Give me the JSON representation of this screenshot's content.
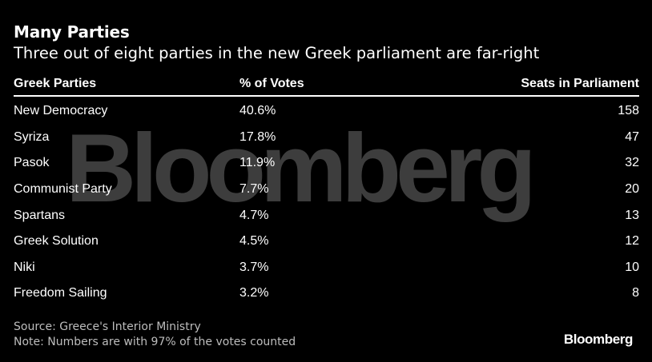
{
  "chart_data": {
    "type": "table",
    "title": "Many Parties",
    "subtitle": "Three out of eight parties in the new Greek parliament are far-right",
    "columns": [
      "Greek Parties",
      "% of Votes",
      "Seats in Parliament"
    ],
    "rows": [
      [
        "New Democracy",
        "40.6%",
        "158"
      ],
      [
        "Syriza",
        "17.8%",
        "47"
      ],
      [
        "Pasok",
        "11.9%",
        "32"
      ],
      [
        "Communist Party",
        "7.7%",
        "20"
      ],
      [
        "Spartans",
        "4.7%",
        "13"
      ],
      [
        "Greek Solution",
        "4.5%",
        "12"
      ],
      [
        "Niki",
        "3.7%",
        "10"
      ],
      [
        "Freedom Sailing",
        "3.2%",
        "8"
      ]
    ],
    "source": "Source: Greece's Interior Ministry",
    "note": "Note: Numbers are with 97% of the votes counted"
  },
  "watermark": "Bloomberg",
  "logo": "Bloomberg",
  "colors": {
    "background": "#000000",
    "text": "#ffffff",
    "footer_text": "#bdbdbd",
    "watermark": "#3d3d3d"
  }
}
